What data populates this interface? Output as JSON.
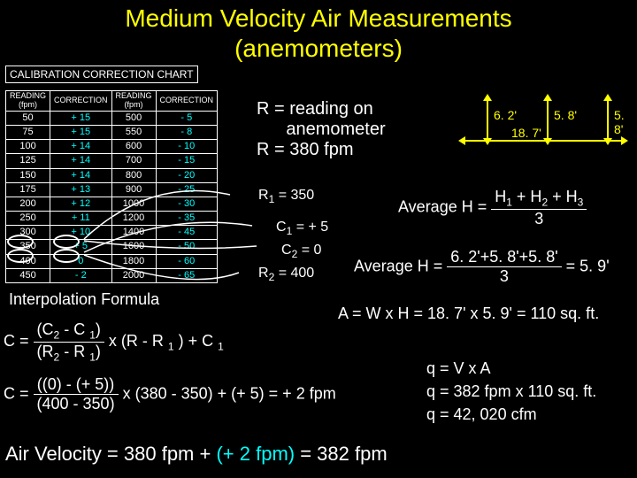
{
  "title_line1": "Medium Velocity Air Measurements",
  "title_line2": "(anemometers)",
  "cal_title": "CALIBRATION CORRECTION CHART",
  "table": {
    "headers": [
      "READING\n(fpm)",
      "CORRECTION",
      "READING\n(fpm)",
      "CORRECTION"
    ],
    "rows": [
      [
        "50",
        "+ 15",
        "500",
        "- 5"
      ],
      [
        "75",
        "+ 15",
        "550",
        "- 8"
      ],
      [
        "100",
        "+ 14",
        "600",
        "- 10"
      ],
      [
        "125",
        "+ 14",
        "700",
        "- 15"
      ],
      [
        "150",
        "+ 14",
        "800",
        "- 20"
      ],
      [
        "175",
        "+ 13",
        "900",
        "- 25"
      ],
      [
        "200",
        "+ 12",
        "1000",
        "- 30"
      ],
      [
        "250",
        "+ 11",
        "1200",
        "- 35"
      ],
      [
        "300",
        "+ 10",
        "1400",
        "- 45"
      ],
      [
        "350",
        "+ 5",
        "1600",
        "- 50"
      ],
      [
        "400",
        "0",
        "1800",
        "- 60"
      ],
      [
        "450",
        "- 2",
        "2000",
        "- 65"
      ]
    ]
  },
  "r_reading": "R = reading on",
  "r_anem": "      anemometer",
  "r_380": "R = 380 fpm",
  "r1_350": "R",
  "r1_sub": "1",
  "r1_rest": "= 350",
  "c1_5": "C",
  "c1_sub": "1",
  "c1_rest": "= + 5",
  "c2_0": "C",
  "c2_sub": "2",
  "c2_rest": "= 0",
  "r2_400": "R",
  "r2_sub": "2",
  "r2_rest": "= 400",
  "interp": "Interpolation Formula",
  "f1_c_eq": "C = ",
  "f1_num": "(C",
  "f1_num2": " -  C ",
  "f1_num3": ")",
  "f1_den": "(R",
  "f1_den2": " -  R ",
  "f1_den3": ")",
  "f1_rest": " x (R - R ",
  "f1_rest2": " ) + C ",
  "f2_num": "((0)  - (+ 5))",
  "f2_den": "(400 - 350)",
  "f2_rest": " x (380 - 350) + (+ 5)  =  + 2 fpm",
  "avg_h_label": "Average H = ",
  "avg_num": "H",
  "avg_plus": " + H",
  "avg_den": "3",
  "avg2_num": "6. 2'+5. 8'+5. 8'",
  "avg2_den": "3",
  "avg2_eq": " = 5. 9'",
  "dim_62": "6. 2'",
  "dim_58a": "5. 8'",
  "dim_58b": "5. 8'",
  "dim_187": "18. 7'",
  "area_formula": "A = W x H = 18. 7' x 5. 9' = 110 sq. ft.",
  "q_va": "q = V x A",
  "q_382": "q = 382 fpm x 110 sq. ft.",
  "q_result": "q =  42, 020 cfm",
  "air_vel": "Air Velocity = 380 fpm + ",
  "air_vel_cyan": "(+ 2 fpm)",
  "air_vel_rest": " =  382 fpm"
}
